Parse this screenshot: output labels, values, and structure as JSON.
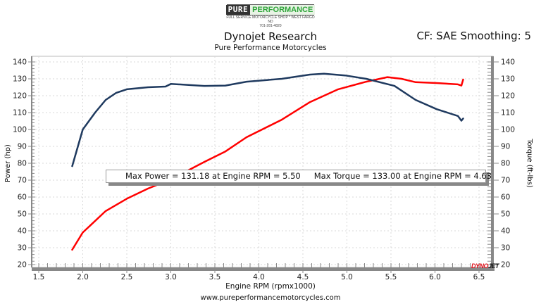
{
  "header": {
    "logo": {
      "part1": "PURE",
      "part2": "PERFORMANCE",
      "tagline": "FULL SERVICE MOTORCYCLE SHOP * WEST FARGO ND",
      "phone": "701-281-4820"
    },
    "title": "Dynojet Research",
    "subtitle": "Pure Performance Motorcycles",
    "correction": "CF: SAE Smoothing: 5"
  },
  "legend": {
    "power": "Max Power = 131.18 at Engine RPM = 5.50",
    "torque": "Max Torque = 133.00 at Engine RPM = 4.63"
  },
  "footer": {
    "url": "www.pureperformancemotorcycles.com"
  },
  "watermark": {
    "part1": "DYNO",
    "part2": "JET"
  },
  "colors": {
    "power": "#ff0000",
    "torque": "#1f3a5f",
    "grid": "#d8d8d8",
    "axis": "#888888"
  },
  "chart_data": {
    "type": "line",
    "title": "Dynojet Research",
    "subtitle": "Pure Performance Motorcycles",
    "xlabel": "Engine RPM (rpmx1000)",
    "ylabel": "Power (hp)",
    "y2label": "Torque (ft-lbs)",
    "xlim": [
      1.5,
      6.5
    ],
    "ylim": [
      20,
      140
    ],
    "y2lim": [
      20,
      140
    ],
    "xticks": [
      "1.5",
      "2.0",
      "2.5",
      "3.0",
      "3.5",
      "4.0",
      "4.5",
      "5.0",
      "5.5",
      "6.0",
      "6.5"
    ],
    "yticks": [
      "20",
      "30",
      "40",
      "50",
      "60",
      "70",
      "80",
      "90",
      "100",
      "110",
      "120",
      "130",
      "140"
    ],
    "grid": true,
    "legend_position": "center",
    "series": [
      {
        "name": "Power (hp)",
        "axis": "left",
        "color": "#ff0000",
        "x": [
          1.88,
          2.0,
          2.26,
          2.5,
          2.74,
          3.0,
          3.38,
          3.62,
          3.86,
          4.26,
          4.58,
          4.9,
          5.22,
          5.46,
          5.62,
          5.78,
          6.02,
          6.26,
          6.3,
          6.32
        ],
        "y": [
          28.8,
          39.0,
          51.7,
          59.0,
          65.0,
          70.4,
          80.8,
          87.0,
          95.4,
          105.8,
          116.2,
          123.8,
          128.3,
          131.0,
          130.0,
          128.0,
          127.5,
          126.7,
          126.0,
          129.6
        ]
      },
      {
        "name": "Torque (ft-lbs)",
        "axis": "right",
        "color": "#1f3a5f",
        "x": [
          1.88,
          2.0,
          2.14,
          2.26,
          2.38,
          2.5,
          2.74,
          2.94,
          3.0,
          3.38,
          3.62,
          3.86,
          4.26,
          4.58,
          4.74,
          4.98,
          5.22,
          5.54,
          5.78,
          6.02,
          6.26,
          6.3,
          6.32
        ],
        "y": [
          78.3,
          100.0,
          110.0,
          117.5,
          121.7,
          123.8,
          125.0,
          125.4,
          127.0,
          125.8,
          126.0,
          128.3,
          130.0,
          132.5,
          133.0,
          132.0,
          130.0,
          125.8,
          117.5,
          112.0,
          108.0,
          105.2,
          106.5
        ]
      }
    ],
    "annotations": [
      "Max Power = 131.18 at Engine RPM = 5.50",
      "Max Torque = 133.00 at Engine RPM = 4.63"
    ]
  }
}
